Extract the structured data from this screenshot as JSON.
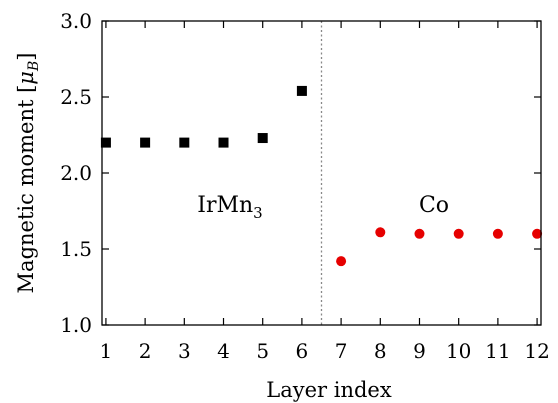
{
  "chart_data": {
    "type": "scatter",
    "title": "",
    "xlabel": "Layer index",
    "ylabel_prefix": "Magnetic moment [",
    "ylabel_mu": "μ",
    "ylabel_sub": "B",
    "ylabel_suffix": "]",
    "xlim": [
      0.9,
      12.1
    ],
    "ylim": [
      1.0,
      3.0
    ],
    "xticks": [
      "1",
      "2",
      "3",
      "4",
      "5",
      "6",
      "7",
      "8",
      "9",
      "10",
      "11",
      "12"
    ],
    "yticks": [
      "1.0",
      "1.5",
      "2.0",
      "2.5",
      "3.0"
    ],
    "divider_x": 6.5,
    "grid": false,
    "series": [
      {
        "color": "#000000",
        "marker": "square",
        "x": [
          1,
          2,
          3,
          4,
          5,
          6
        ],
        "y": [
          2.2,
          2.2,
          2.2,
          2.2,
          2.23,
          2.54
        ]
      },
      {
        "color": "#e60000",
        "marker": "circle",
        "x": [
          7,
          8,
          9,
          10,
          11,
          12
        ],
        "y": [
          1.42,
          1.61,
          1.6,
          1.6,
          1.6,
          1.6
        ]
      }
    ],
    "annotations": {
      "left_main": "IrMn",
      "left_sub": "3",
      "right": "Co"
    }
  }
}
